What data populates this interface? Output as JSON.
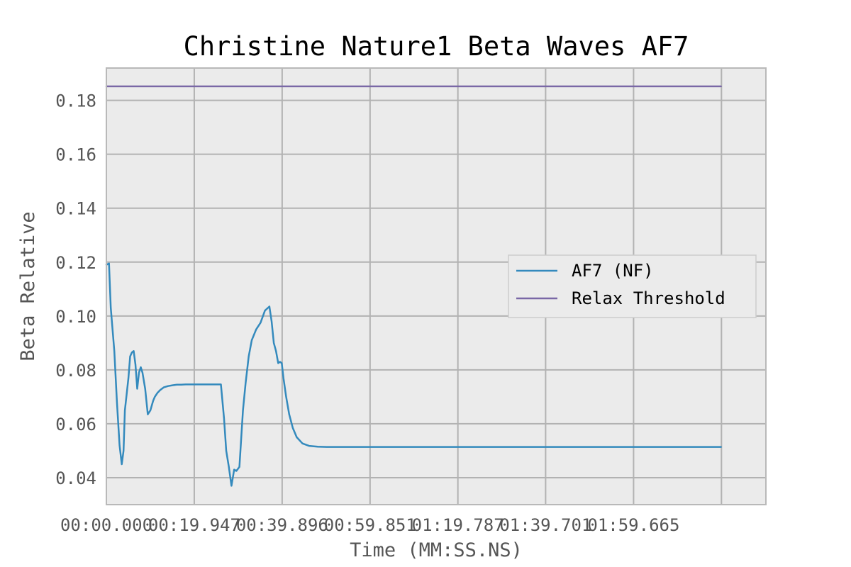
{
  "chart_data": {
    "type": "line",
    "title": "Christine Nature1 Beta Waves AF7",
    "xlabel": "Time (MM:SS.NS)",
    "ylabel": "Beta Relative",
    "x_tick_labels": [
      "00:00.000",
      "00:19.947",
      "00:39.896",
      "00:59.851",
      "01:19.787",
      "01:39.701",
      "01:59.665"
    ],
    "x_ticks_seconds": [
      0,
      19.947,
      39.896,
      59.851,
      79.787,
      99.701,
      119.665
    ],
    "xlim_seconds": [
      0,
      149.7
    ],
    "ylim": [
      0.03,
      0.192
    ],
    "y_ticks": [
      0.04,
      0.06,
      0.08,
      0.1,
      0.12,
      0.14,
      0.16,
      0.18
    ],
    "y_tick_labels": [
      "0.04",
      "0.06",
      "0.08",
      "0.10",
      "0.12",
      "0.14",
      "0.16",
      "0.18"
    ],
    "grid": true,
    "legend_position": "center-right",
    "series": [
      {
        "name": "AF7 (NF)",
        "color": "#348abd",
        "x": [
          0.0,
          0.6,
          1.0,
          1.4,
          1.8,
          2.4,
          3.0,
          3.5,
          3.9,
          4.2,
          4.6,
          5.0,
          5.4,
          5.8,
          6.2,
          6.6,
          7.0,
          7.4,
          7.8,
          8.2,
          8.8,
          9.4,
          10.0,
          10.6,
          11.0,
          11.6,
          12.2,
          13.0,
          14.0,
          15.0,
          16.0,
          17.0,
          18.0,
          19.0,
          20.0,
          22.0,
          24.0,
          26.0,
          26.7,
          27.2,
          27.8,
          28.4,
          29.0,
          29.5,
          30.2,
          31.0,
          31.6,
          32.3,
          33.0,
          34.0,
          35.0,
          36.0,
          37.0,
          37.5,
          38.0,
          38.5,
          39.0,
          39.4,
          39.8,
          40.2,
          40.8,
          41.5,
          42.3,
          43.2,
          44.5,
          46.0,
          48.0,
          50.0,
          55.0,
          60.0,
          80.0,
          100.0,
          120.0,
          139.5
        ],
        "y": [
          0.119,
          0.1195,
          0.103,
          0.095,
          0.087,
          0.068,
          0.052,
          0.045,
          0.05,
          0.065,
          0.071,
          0.077,
          0.085,
          0.0865,
          0.087,
          0.082,
          0.073,
          0.079,
          0.081,
          0.079,
          0.073,
          0.0635,
          0.065,
          0.0685,
          0.07,
          0.0715,
          0.0725,
          0.0735,
          0.074,
          0.0743,
          0.0745,
          0.0745,
          0.0746,
          0.0746,
          0.0746,
          0.0746,
          0.0746,
          0.0746,
          0.062,
          0.05,
          0.044,
          0.037,
          0.043,
          0.0425,
          0.044,
          0.065,
          0.075,
          0.085,
          0.091,
          0.095,
          0.0975,
          0.102,
          0.1035,
          0.098,
          0.09,
          0.087,
          0.0825,
          0.083,
          0.0825,
          0.077,
          0.07,
          0.0635,
          0.0585,
          0.055,
          0.0527,
          0.0518,
          0.0515,
          0.0514,
          0.0514,
          0.0514,
          0.0514,
          0.0514,
          0.0514,
          0.0514
        ]
      },
      {
        "name": "Relax Threshold",
        "color": "#7a68a6",
        "x": [
          0.0,
          139.5
        ],
        "y": [
          0.1852,
          0.1852
        ]
      }
    ]
  },
  "style": {
    "plot_background": "#ebebeb",
    "grid_color": "#b2b2b2",
    "frame_color": "#b9b9b9"
  }
}
